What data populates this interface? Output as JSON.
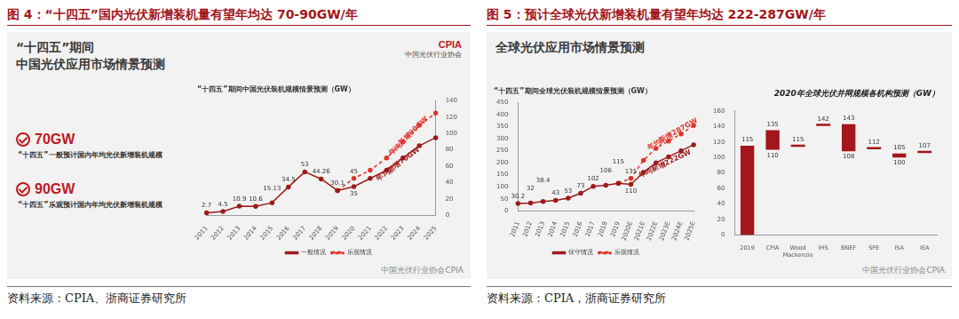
{
  "page": {
    "figures": [
      {
        "caption": "图 4：“十四五”国内光伏新增装机量有望年均达 70-90GW/年",
        "slide_title": [
          "“十四五”期间",
          "中国光伏应用市场情景预测"
        ],
        "logo": "CPIA",
        "logo_text": "中国光伏行业协会",
        "callouts": [
          {
            "value": "70GW",
            "text": "“十四五”一般预计国内年均光伏新增装机规模"
          },
          {
            "value": "90GW",
            "text": "“十四五”乐观预计国内年均光伏新增装机规模"
          }
        ],
        "watermark": "中国光伏行业协会CPIA",
        "source": "资料来源：CPIA、浙商证券研究所"
      },
      {
        "caption": "图 5：预计全球光伏新增装机量有望年均达 222-287GW/年",
        "slide_title": [
          "全球光伏应用市场情景预测"
        ],
        "watermark": "中国光伏行业协会CPIA",
        "source": "资料来源：CPIA，浙商证券研究所"
      }
    ]
  },
  "chart_data": [
    {
      "type": "line",
      "title": "“十四五”期间中国光伏装机规模情景预测（GW）",
      "categories": [
        "2011",
        "2012",
        "2013",
        "2014",
        "2015",
        "2016",
        "2017",
        "2018",
        "2019",
        "2020",
        "2021",
        "2022",
        "2023",
        "2024",
        "2025"
      ],
      "series": [
        {
          "name": "一般情况",
          "color": "#9e1b1b",
          "line_style": "solid",
          "marker": "circle",
          "values": [
            2.7,
            4.5,
            10.9,
            10.6,
            15.13,
            34.5,
            53,
            44.26,
            30.1,
            35,
            45,
            55,
            70,
            85,
            95
          ],
          "value_labels": [
            "2.7",
            "4.5",
            "10.9",
            "10.6",
            "15.13",
            "34.5",
            "53",
            "44.26",
            "30.1",
            "35",
            null,
            null,
            null,
            null,
            null
          ],
          "annotation": "年均新增70GW"
        },
        {
          "name": "乐观情况",
          "color": "#e0352b",
          "line_style": "dashed",
          "marker": "circle",
          "values": [
            null,
            null,
            null,
            null,
            null,
            null,
            null,
            null,
            30.1,
            45,
            55,
            70,
            90,
            110,
            125
          ],
          "value_labels": [
            null,
            null,
            null,
            null,
            null,
            null,
            null,
            null,
            null,
            "45",
            null,
            null,
            null,
            null,
            null
          ],
          "annotation": "年均新增90GW"
        }
      ],
      "ylim": [
        0,
        140
      ],
      "yticks": [
        0,
        20,
        40,
        60,
        80,
        100,
        120,
        140
      ],
      "grid": false,
      "legend": "bottom",
      "data_labels": true
    },
    {
      "type": "line",
      "title": "“十四五”期间全球光伏装机规模情景预测（GW）",
      "categories": [
        "2011",
        "2012",
        "2013",
        "2014",
        "2015",
        "2016",
        "2017",
        "2018",
        "2019",
        "2020E",
        "2021E",
        "2022E",
        "2023E",
        "2024E",
        "2025E"
      ],
      "series": [
        {
          "name": "保守情况",
          "color": "#9e1b1b",
          "line_style": "solid",
          "marker": "circle",
          "values": [
            30.2,
            32,
            38.4,
            43,
            53,
            73,
            102,
            106,
            115,
            110,
            160,
            200,
            225,
            250,
            275
          ],
          "value_labels": [
            "30.2",
            "32",
            "38.4",
            "43",
            "53",
            "73",
            "102",
            "106",
            "115",
            "110",
            null,
            null,
            null,
            null,
            null
          ],
          "annotation": "年均新增222GW"
        },
        {
          "name": "乐观情况",
          "color": "#e0352b",
          "line_style": "dashed",
          "marker": "circle",
          "values": [
            null,
            null,
            null,
            null,
            null,
            null,
            null,
            null,
            115,
            135,
            210,
            260,
            290,
            320,
            355
          ],
          "value_labels": [
            null,
            null,
            null,
            null,
            null,
            null,
            null,
            null,
            null,
            "135",
            null,
            null,
            null,
            null,
            null
          ],
          "annotation": "年均新增287GW"
        }
      ],
      "ylim": [
        0,
        450
      ],
      "yticks": [
        0,
        50,
        100,
        150,
        200,
        250,
        300,
        350,
        400,
        450
      ],
      "grid": false,
      "legend": "bottom",
      "data_labels": true
    },
    {
      "type": "bar",
      "title": "2020年全球光伏并网规模各机构预测（GW）",
      "categories": [
        "2019",
        "CPIA",
        "Wood Mackenzie",
        "IHS",
        "BNEF",
        "SPE",
        "ISA",
        "IEA"
      ],
      "low": [
        0,
        110,
        115,
        142,
        108,
        112,
        100,
        107
      ],
      "high": [
        115,
        135,
        115,
        142,
        143,
        112,
        105,
        107
      ],
      "value_labels_high": [
        "115",
        "135",
        "115",
        "142",
        "143",
        "112",
        "105",
        "107"
      ],
      "value_labels_low": [
        null,
        "110",
        null,
        null,
        "108",
        null,
        "100",
        null
      ],
      "color": "#a3161b",
      "ylim": [
        0,
        160
      ],
      "yticks": [
        0,
        20,
        40,
        60,
        80,
        100,
        120,
        140,
        160
      ],
      "grid": false,
      "data_labels": true
    }
  ]
}
